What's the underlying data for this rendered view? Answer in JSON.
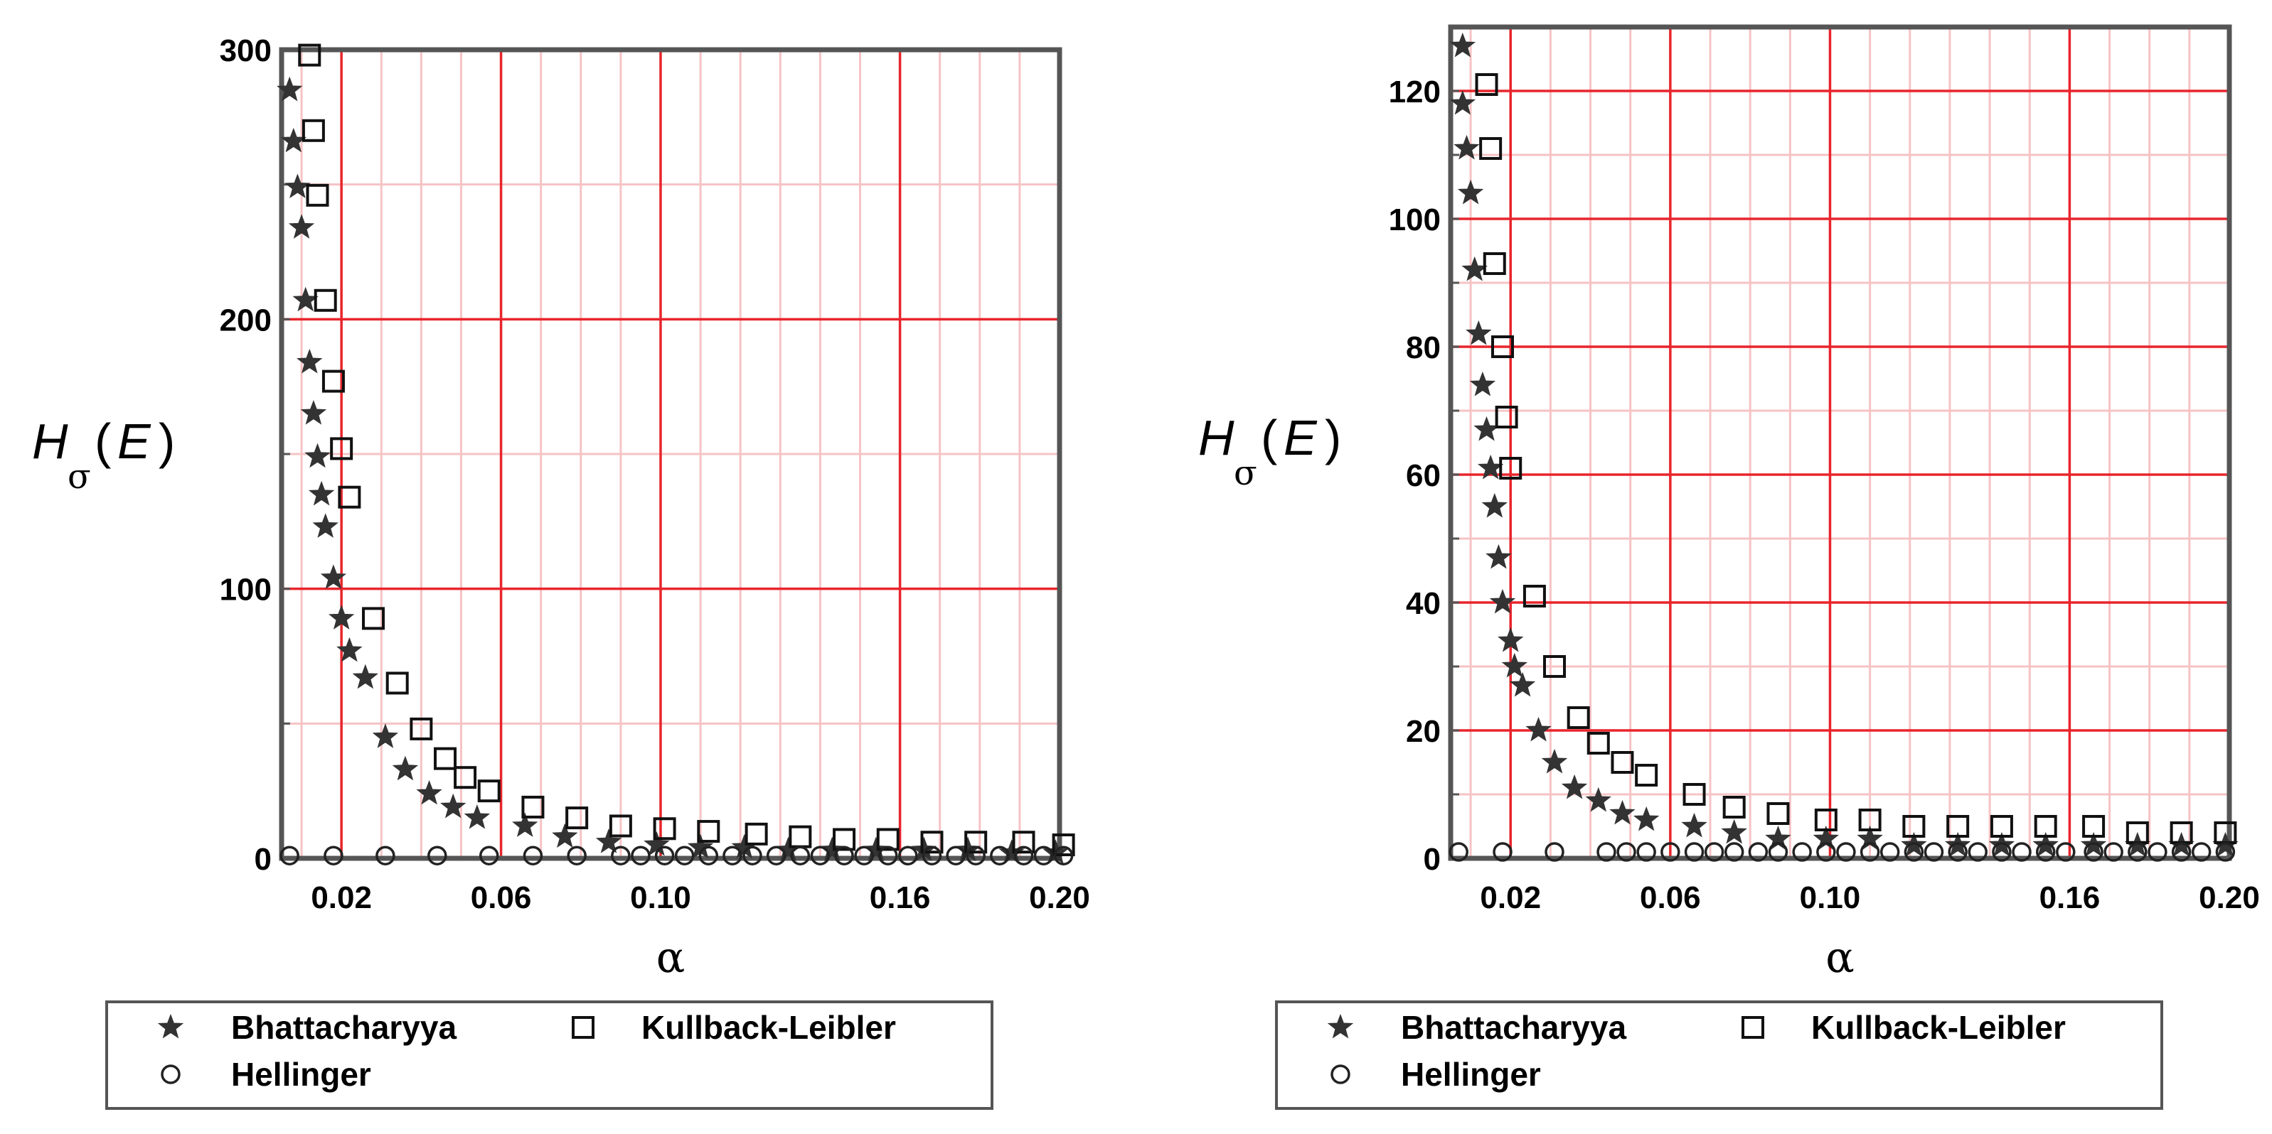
{
  "chart_data": [
    {
      "type": "scatter",
      "xlabel": "α",
      "ylabel": {
        "main": "H",
        "sub": "σ",
        "open": "(",
        "arg": "E",
        "close": ")"
      },
      "xlim": [
        0.005,
        0.2
      ],
      "ylim": [
        0,
        300
      ],
      "xticks": [
        0.02,
        0.06,
        0.1,
        0.16,
        0.2
      ],
      "xtick_labels": [
        "0.02",
        "0.06",
        "0.10",
        "0.16",
        "0.20"
      ],
      "yticks": [
        0,
        100,
        200,
        300
      ],
      "ytick_labels": [
        "0",
        "100",
        "200",
        "300"
      ],
      "grid": true,
      "legend_position": "bottom",
      "series": [
        {
          "name": "Bhattacharyya",
          "marker": "star",
          "x": [
            0.007,
            0.008,
            0.009,
            0.01,
            0.011,
            0.012,
            0.013,
            0.014,
            0.015,
            0.016,
            0.018,
            0.02,
            0.022,
            0.026,
            0.031,
            0.036,
            0.042,
            0.048,
            0.054,
            0.066,
            0.076,
            0.087,
            0.099,
            0.11,
            0.121,
            0.132,
            0.143,
            0.154,
            0.166,
            0.177,
            0.188,
            0.199
          ],
          "y": [
            285,
            266,
            249,
            234,
            207,
            184,
            165,
            149,
            135,
            123,
            104,
            89,
            77,
            67,
            45,
            33,
            24,
            19,
            15,
            12,
            8,
            6,
            5,
            4,
            4,
            3,
            3,
            3,
            3,
            3,
            2,
            2
          ]
        },
        {
          "name": "Kullback-Leibler",
          "marker": "square",
          "x": [
            0.012,
            0.013,
            0.014,
            0.016,
            0.018,
            0.02,
            0.022,
            0.028,
            0.034,
            0.04,
            0.046,
            0.051,
            0.057,
            0.068,
            0.079,
            0.09,
            0.101,
            0.112,
            0.124,
            0.135,
            0.146,
            0.157,
            0.168,
            0.179,
            0.191,
            0.201
          ],
          "y": [
            298,
            270,
            246,
            207,
            177,
            152,
            134,
            89,
            65,
            48,
            37,
            30,
            25,
            19,
            15,
            12,
            11,
            10,
            9,
            8,
            7,
            7,
            6,
            6,
            6,
            5
          ]
        },
        {
          "name": "Hellinger",
          "marker": "circle",
          "x": [
            0.007,
            0.018,
            0.031,
            0.044,
            0.057,
            0.068,
            0.079,
            0.09,
            0.095,
            0.101,
            0.106,
            0.112,
            0.118,
            0.123,
            0.129,
            0.135,
            0.14,
            0.146,
            0.151,
            0.157,
            0.162,
            0.168,
            0.174,
            0.179,
            0.185,
            0.191,
            0.196,
            0.201
          ],
          "y": [
            1,
            1,
            1,
            1,
            1,
            1,
            1,
            1,
            1,
            1,
            1,
            1,
            1,
            1,
            1,
            1,
            1,
            1,
            1,
            1,
            1,
            1,
            1,
            1,
            1,
            1,
            1,
            1
          ]
        }
      ]
    },
    {
      "type": "scatter",
      "xlabel": "α",
      "ylabel": {
        "main": "H",
        "sub": "σ",
        "open": "(",
        "arg": "E",
        "close": ")"
      },
      "xlim": [
        0.005,
        0.2
      ],
      "ylim": [
        0,
        130
      ],
      "xticks": [
        0.02,
        0.06,
        0.1,
        0.16,
        0.2
      ],
      "xtick_labels": [
        "0.02",
        "0.06",
        "0.10",
        "0.16",
        "0.20"
      ],
      "yticks": [
        0,
        20,
        40,
        60,
        80,
        100,
        120
      ],
      "ytick_labels": [
        "0",
        "20",
        "40",
        "60",
        "80",
        "100",
        "120"
      ],
      "grid": true,
      "legend_position": "bottom",
      "series": [
        {
          "name": "Bhattacharyya",
          "marker": "star",
          "x": [
            0.008,
            0.008,
            0.009,
            0.01,
            0.011,
            0.012,
            0.013,
            0.014,
            0.015,
            0.016,
            0.017,
            0.018,
            0.02,
            0.021,
            0.023,
            0.027,
            0.031,
            0.036,
            0.042,
            0.048,
            0.054,
            0.066,
            0.076,
            0.087,
            0.099,
            0.11,
            0.121,
            0.132,
            0.143,
            0.154,
            0.166,
            0.177,
            0.188,
            0.199
          ],
          "y": [
            127,
            118,
            111,
            104,
            92,
            82,
            74,
            67,
            61,
            55,
            47,
            40,
            34,
            30,
            27,
            20,
            15,
            11,
            9,
            7,
            6,
            5,
            4,
            3,
            3,
            3,
            2,
            2,
            2,
            2,
            2,
            2,
            2,
            2
          ]
        },
        {
          "name": "Kullback-Leibler",
          "marker": "square",
          "x": [
            0.014,
            0.015,
            0.016,
            0.018,
            0.019,
            0.02,
            0.026,
            0.031,
            0.037,
            0.042,
            0.048,
            0.054,
            0.066,
            0.076,
            0.087,
            0.099,
            0.11,
            0.121,
            0.132,
            0.143,
            0.154,
            0.166,
            0.177,
            0.188,
            0.199
          ],
          "y": [
            121,
            111,
            93,
            80,
            69,
            61,
            41,
            30,
            22,
            18,
            15,
            13,
            10,
            8,
            7,
            6,
            6,
            5,
            5,
            5,
            5,
            5,
            4,
            4,
            4
          ]
        },
        {
          "name": "Hellinger",
          "marker": "circle",
          "x": [
            0.007,
            0.018,
            0.031,
            0.044,
            0.049,
            0.054,
            0.06,
            0.066,
            0.071,
            0.076,
            0.082,
            0.087,
            0.093,
            0.099,
            0.104,
            0.11,
            0.115,
            0.121,
            0.126,
            0.132,
            0.137,
            0.143,
            0.148,
            0.154,
            0.159,
            0.166,
            0.171,
            0.177,
            0.182,
            0.188,
            0.193,
            0.199
          ],
          "y": [
            1,
            1,
            1,
            1,
            1,
            1,
            1,
            1,
            1,
            1,
            1,
            1,
            1,
            1,
            1,
            1,
            1,
            1,
            1,
            1,
            1,
            1,
            1,
            1,
            1,
            1,
            1,
            1,
            1,
            1,
            1,
            1
          ]
        }
      ]
    }
  ],
  "colors": {
    "grid_major": "#e8252c",
    "grid_minor": "#f6c3c5",
    "frame": "#555555",
    "marker": "#333333",
    "legend_border": "#555555"
  }
}
